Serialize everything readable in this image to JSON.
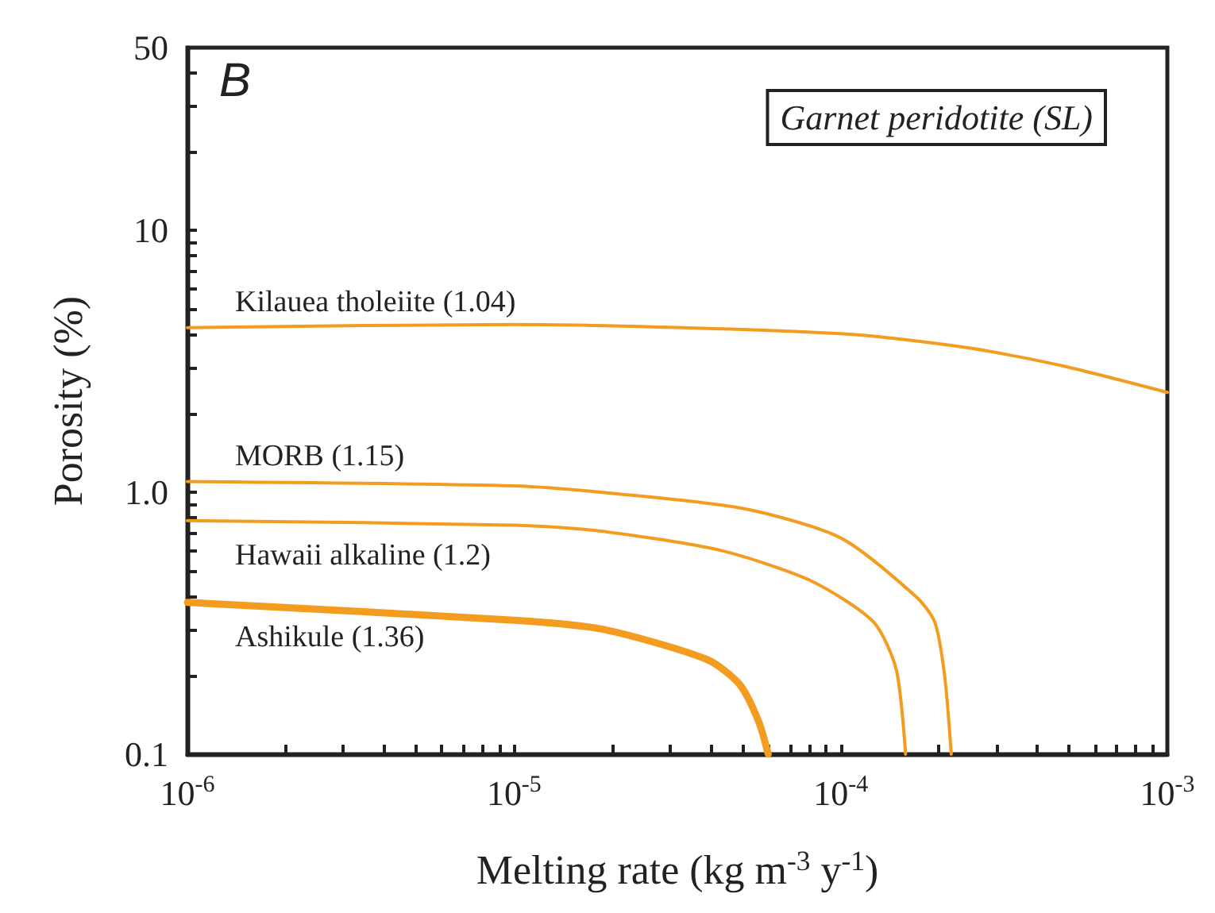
{
  "chart_data": {
    "type": "line",
    "xlabel": "Melting rate (kg m$^{-3}$ y$^{-1}$)",
    "ylabel": "Porosity (%)",
    "log": "xy",
    "xlim": [
      1e-06,
      0.001
    ],
    "ylim": [
      0.1,
      50
    ],
    "xticks": [
      {
        "value": 1e-06,
        "label": "10$^{-6}$"
      },
      {
        "value": 2e-06,
        "label": null
      },
      {
        "value": 3e-06,
        "label": null
      },
      {
        "value": 4e-06,
        "label": null
      },
      {
        "value": 5e-06,
        "label": null
      },
      {
        "value": 6e-06,
        "label": null
      },
      {
        "value": 7e-06,
        "label": null
      },
      {
        "value": 8e-06,
        "label": null
      },
      {
        "value": 9e-06,
        "label": null
      },
      {
        "value": 1e-05,
        "label": "10$^{-5}$"
      },
      {
        "value": 2e-05,
        "label": null
      },
      {
        "value": 3e-05,
        "label": null
      },
      {
        "value": 4e-05,
        "label": null
      },
      {
        "value": 5e-05,
        "label": null
      },
      {
        "value": 6e-05,
        "label": null
      },
      {
        "value": 7e-05,
        "label": null
      },
      {
        "value": 8e-05,
        "label": null
      },
      {
        "value": 9e-05,
        "label": null
      },
      {
        "value": 0.0001,
        "label": "10$^{-4}$"
      },
      {
        "value": 0.0002,
        "label": null
      },
      {
        "value": 0.0003,
        "label": null
      },
      {
        "value": 0.0004,
        "label": null
      },
      {
        "value": 0.0005,
        "label": null
      },
      {
        "value": 0.0006,
        "label": null
      },
      {
        "value": 0.0007,
        "label": null
      },
      {
        "value": 0.0008,
        "label": null
      },
      {
        "value": 0.0009,
        "label": null
      },
      {
        "value": 0.001,
        "label": "10$^{-3}$"
      }
    ],
    "yticks": [
      0.1,
      {
        "value": 0.2,
        "label": null
      },
      {
        "value": 0.3,
        "label": null
      },
      {
        "value": 0.4,
        "label": null
      },
      {
        "value": 0.5,
        "label": null
      },
      {
        "value": 0.6,
        "label": null
      },
      {
        "value": 0.7,
        "label": null
      },
      {
        "value": 0.8,
        "label": null
      },
      {
        "value": 0.9,
        "label": null
      },
      {
        "value": 1,
        "label": "1.0"
      },
      {
        "value": 2,
        "label": null
      },
      {
        "value": 3,
        "label": null
      },
      {
        "value": 4,
        "label": null
      },
      {
        "value": 5,
        "label": null
      },
      {
        "value": 6,
        "label": null
      },
      {
        "value": 7,
        "label": null
      },
      {
        "value": 8,
        "label": null
      },
      {
        "value": 9,
        "label": null
      },
      10,
      {
        "value": 20,
        "label": null
      },
      {
        "value": 30,
        "label": null
      },
      {
        "value": 40,
        "label": null
      },
      50
    ],
    "grid": false,
    "legend": false,
    "marker": "none",
    "line_style": "solid",
    "series": [
      {
        "name": "Kilauea tholeiite (1.04)",
        "color": "#f39c1f",
        "x": [
          1e-06,
          1e-05,
          0.0001,
          0.000245,
          0.00048,
          0.001
        ],
        "values": [
          4.26,
          4.38,
          4.04,
          3.57,
          3.04,
          2.41
        ]
      },
      {
        "name": "MORB (1.15)",
        "color": "#f39c1f",
        "x": [
          1e-06,
          1e-05,
          1.87e-05,
          5e-05,
          0.0001,
          0.00017,
          0.000194,
          0.000208,
          0.000218
        ],
        "values": [
          1.1,
          1.06,
          1.0,
          0.87,
          0.67,
          0.4,
          0.32,
          0.2,
          0.1
        ]
      },
      {
        "name": "Hawaii alkaline (1.2)",
        "color": "#f39c1f",
        "x": [
          1e-06,
          1e-05,
          1.87e-05,
          4.3e-05,
          8.1e-05,
          0.000126,
          0.000148,
          0.000158
        ],
        "values": [
          0.78,
          0.75,
          0.71,
          0.6,
          0.46,
          0.32,
          0.21,
          0.1
        ]
      },
      {
        "name": "Ashikule (1.36)",
        "color": "#f39c1f",
        "x": [
          1e-06,
          1e-05,
          1.87e-05,
          3.9e-05,
          4.9e-05,
          5.6e-05,
          6e-05
        ],
        "values": [
          0.38,
          0.325,
          0.3,
          0.23,
          0.185,
          0.134,
          0.1
        ]
      }
    ],
    "annotations": [
      "B",
      "Garnet peridotite (SL)"
    ]
  }
}
